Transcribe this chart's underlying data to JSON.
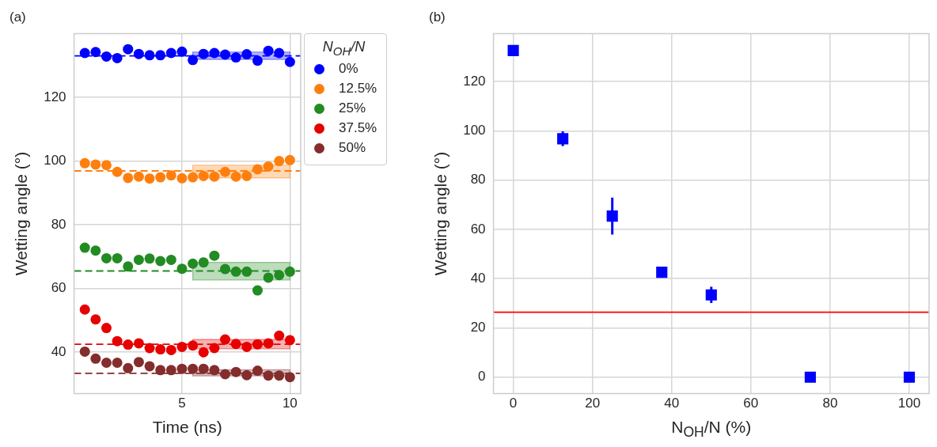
{
  "chart_data": [
    {
      "type": "scatter",
      "title": "(a)",
      "xlabel": "Time (ns)",
      "ylabel": "Wetting angle (°)",
      "legend_title": "N$_{OH}$/N",
      "legend": "right",
      "grid": true,
      "marker": "circle",
      "xlim": [
        0,
        10.5
      ],
      "xticks": [
        5,
        10
      ],
      "ylim": [
        27,
        140
      ],
      "yticks": [
        40,
        60,
        80,
        100,
        120
      ],
      "x": [
        0.5,
        1.0,
        1.5,
        2.0,
        2.5,
        3.0,
        3.5,
        4.0,
        4.5,
        5.0,
        5.5,
        6.0,
        6.5,
        7.0,
        7.5,
        8.0,
        8.5,
        9.0,
        9.5,
        10.0
      ],
      "series": [
        {
          "name": "0%",
          "color": "#0000ff",
          "values": [
            133.9,
            134.2,
            132.8,
            132.3,
            135.1,
            133.6,
            133.2,
            133.2,
            133.9,
            134.3,
            131.7,
            133.6,
            133.9,
            133.4,
            132.5,
            133.5,
            131.5,
            134.6,
            133.9,
            131.1
          ],
          "lower": [
            null,
            null,
            null,
            null,
            null,
            null,
            null,
            null,
            null,
            null,
            131.9,
            131.9,
            131.9,
            131.9,
            131.9,
            131.9,
            131.9,
            131.9,
            131.9,
            131.9
          ],
          "upper": [
            null,
            null,
            null,
            null,
            null,
            null,
            null,
            null,
            null,
            null,
            134.2,
            134.2,
            134.2,
            134.2,
            134.2,
            134.2,
            134.2,
            134.2,
            134.2,
            134.2
          ]
        },
        {
          "name": "12.5%",
          "color": "#ff7f0e",
          "values": [
            99.3,
            98.9,
            98.7,
            96.6,
            94.7,
            95.1,
            94.5,
            94.9,
            95.5,
            94.6,
            94.9,
            95.3,
            95.1,
            96.6,
            95.1,
            95.3,
            97.4,
            98.3,
            100.0,
            100.3
          ],
          "lower": [
            null,
            null,
            null,
            null,
            null,
            null,
            null,
            null,
            null,
            null,
            94.7,
            94.7,
            94.7,
            94.7,
            94.7,
            94.7,
            94.7,
            94.7,
            94.7,
            94.7
          ],
          "upper": [
            null,
            null,
            null,
            null,
            null,
            null,
            null,
            null,
            null,
            null,
            98.7,
            98.7,
            98.7,
            98.7,
            98.7,
            98.7,
            98.7,
            98.7,
            98.7,
            98.7
          ]
        },
        {
          "name": "25%",
          "color": "#228b22",
          "values": [
            72.8,
            71.9,
            69.5,
            69.5,
            66.9,
            69.0,
            69.4,
            68.6,
            69.0,
            66.2,
            67.8,
            68.2,
            70.3,
            66.1,
            65.3,
            65.3,
            59.4,
            63.4,
            64.2,
            65.3
          ],
          "lower": [
            null,
            null,
            null,
            null,
            null,
            null,
            null,
            null,
            null,
            null,
            62.7,
            62.7,
            62.7,
            62.7,
            62.7,
            62.7,
            62.7,
            62.7,
            62.7,
            62.7
          ],
          "upper": [
            null,
            null,
            null,
            null,
            null,
            null,
            null,
            null,
            null,
            null,
            68.2,
            68.2,
            68.2,
            68.2,
            68.2,
            68.2,
            68.2,
            68.2,
            68.2,
            68.2
          ]
        },
        {
          "name": "37.5%",
          "color": "#e60000",
          "values": [
            53.4,
            50.3,
            47.6,
            43.5,
            42.4,
            42.8,
            41.3,
            40.9,
            40.7,
            41.7,
            42.1,
            40.0,
            41.3,
            44.0,
            42.6,
            41.7,
            42.5,
            42.8,
            45.2,
            43.8
          ],
          "lower": [
            null,
            null,
            null,
            null,
            null,
            null,
            null,
            null,
            null,
            null,
            41.1,
            41.1,
            41.1,
            41.1,
            41.1,
            41.1,
            41.1,
            41.1,
            41.1,
            41.1
          ],
          "upper": [
            null,
            null,
            null,
            null,
            null,
            null,
            null,
            null,
            null,
            null,
            44.0,
            44.0,
            44.0,
            44.0,
            44.0,
            44.0,
            44.0,
            44.0,
            44.0,
            44.0
          ]
        },
        {
          "name": "50%",
          "color": "#832d2d",
          "values": [
            40.2,
            38.0,
            36.7,
            36.7,
            35.0,
            36.9,
            35.6,
            34.4,
            34.4,
            34.8,
            34.8,
            34.8,
            34.4,
            33.1,
            33.8,
            32.8,
            34.2,
            32.7,
            32.7,
            32.2
          ],
          "lower": [
            null,
            null,
            null,
            null,
            null,
            null,
            null,
            null,
            null,
            null,
            32.6,
            32.6,
            32.6,
            32.6,
            32.6,
            32.6,
            32.6,
            32.6,
            32.6,
            32.6
          ],
          "upper": [
            null,
            null,
            null,
            null,
            null,
            null,
            null,
            null,
            null,
            null,
            34.5,
            34.5,
            34.5,
            34.5,
            34.5,
            34.5,
            34.5,
            34.5,
            34.5,
            34.5
          ]
        }
      ],
      "ref_lines": [
        {
          "axis": "y",
          "value": 133.0,
          "color": "#0000ff",
          "line_style": "dashed"
        },
        {
          "axis": "y",
          "value": 96.9,
          "color": "#ff7f0e",
          "line_style": "dashed"
        },
        {
          "axis": "y",
          "value": 65.5,
          "color": "#228b22",
          "line_style": "dashed"
        },
        {
          "axis": "y",
          "value": 42.5,
          "color": "#e60000",
          "line_style": "dashed"
        },
        {
          "axis": "y",
          "value": 33.4,
          "color": "#832d2d",
          "line_style": "dashed"
        }
      ]
    },
    {
      "type": "scatter",
      "title": "(b)",
      "xlabel": "N$_{OH}$/N (%)",
      "ylabel": "Wetting angle (°)",
      "grid": true,
      "marker": "square",
      "xlim": [
        -5,
        105
      ],
      "xticks": [
        0,
        20,
        40,
        60,
        80,
        100
      ],
      "ylim": [
        -6.7,
        139.5
      ],
      "yticks": [
        0,
        20,
        40,
        60,
        80,
        100,
        120
      ],
      "x": [
        0,
        12.5,
        25,
        37.5,
        50,
        75,
        100
      ],
      "series": [
        {
          "color": "#0000ff",
          "values": [
            132.6,
            96.8,
            65.4,
            42.6,
            33.4,
            0,
            0
          ],
          "errors": [
            null,
            3,
            7.5,
            null,
            3.3,
            null,
            null
          ]
        }
      ],
      "ref_lines": [
        {
          "axis": "y",
          "value": 26.4,
          "color": "#ff0000"
        }
      ]
    }
  ]
}
